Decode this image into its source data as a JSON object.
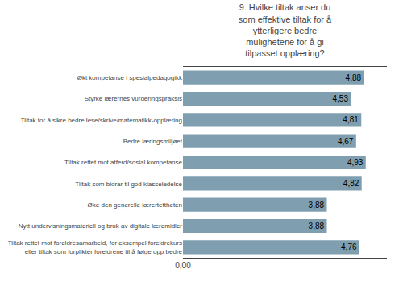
{
  "chart_data": {
    "type": "bar",
    "orientation": "horizontal",
    "title": "9. Hvilke tiltak anser du\nsom effektive tiltak for å\nytterligere bedre\nmulighetene for å gi\ntilpasset opplæring?",
    "categories": [
      "Økt kompetanse i spesialpedagogikk",
      "Styrke lærernes vurderingspraksis",
      "Tiltak for å sikre bedre lese/skrive/matematikk-opplæring",
      "Bedre læringsmiljøet",
      "Tiltak rettet mot atferd/sosial kompetanse",
      "Tiltak som bidrar til god klasseledelse",
      "Øke den generelle lærertettheten",
      "Nytt undervisningsmateriell og bruk av digitale læremidler",
      "Tiltak rettet mot foreldresamarbeid, for eksempel foreldrekurs\neller tiltak som forplikter foreldrene til å følge opp bedre"
    ],
    "values": [
      4.88,
      4.53,
      4.81,
      4.67,
      4.93,
      4.82,
      3.88,
      3.88,
      4.76
    ],
    "value_labels": [
      "4,88",
      "4,53",
      "4,81",
      "4,67",
      "4,93",
      "4,82",
      "3,88",
      "3,88",
      "4,76"
    ],
    "data_labels": true,
    "color": "#7f9fb0",
    "xlim": [
      0,
      5.5
    ],
    "xticks": [
      {
        "value": 0,
        "label": "0,00"
      }
    ],
    "grid": true
  }
}
